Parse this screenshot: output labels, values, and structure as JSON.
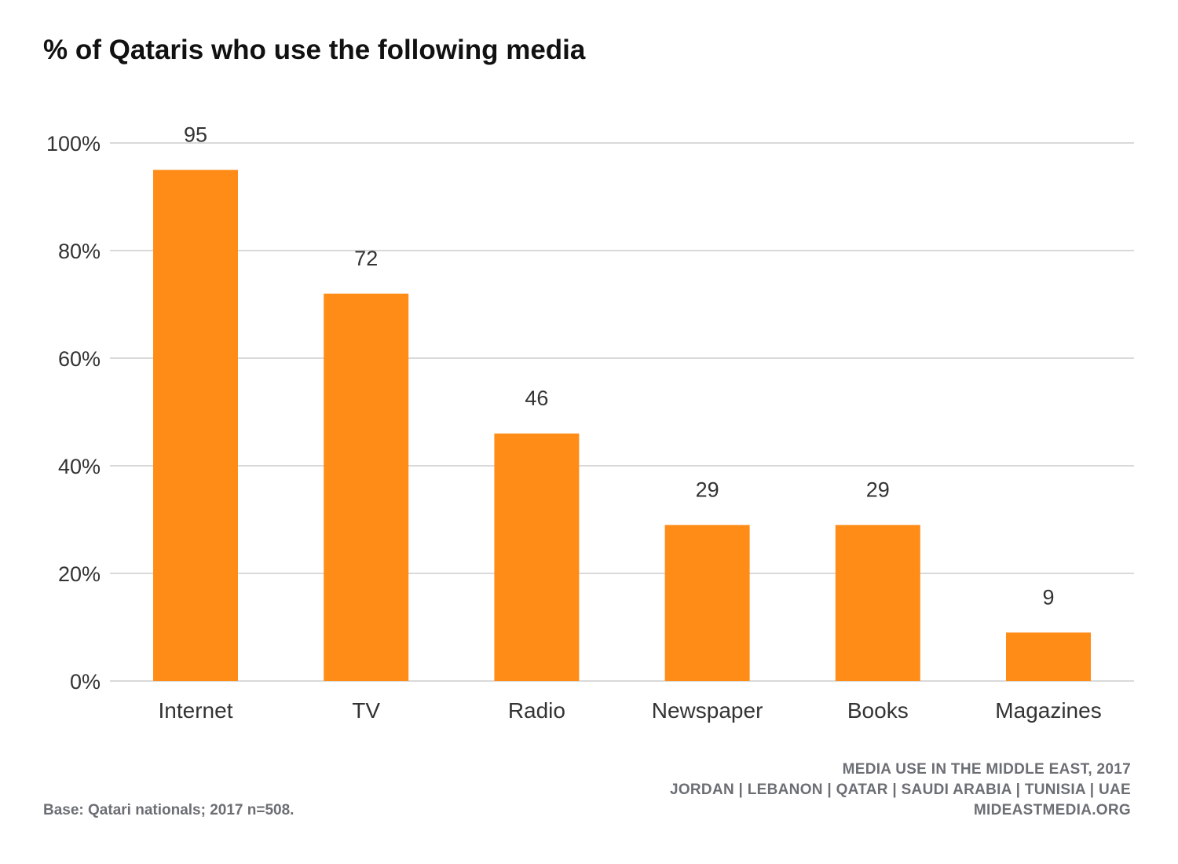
{
  "chart_data": {
    "type": "bar",
    "title": "% of Qataris who use the following media",
    "categories": [
      "Internet",
      "TV",
      "Radio",
      "Newspaper",
      "Books",
      "Magazines"
    ],
    "values": [
      95,
      72,
      46,
      29,
      29,
      9
    ],
    "data_labels": [
      "95",
      "72",
      "46",
      "29",
      "29",
      "9"
    ],
    "ylim": [
      0,
      100
    ],
    "yticks": [
      0,
      20,
      40,
      60,
      80,
      100
    ],
    "ytick_labels": [
      "0%",
      "20%",
      "40%",
      "60%",
      "80%",
      "100%"
    ],
    "grid": "horizontal",
    "legend": "none",
    "bar_color": "#FF8C16"
  },
  "footer": {
    "base_note": "Base: Qatari nationals; 2017 n=508.",
    "source_line1": "MEDIA USE IN THE MIDDLE EAST, 2017",
    "source_line2": "JORDAN | LEBANON | QATAR | SAUDI ARABIA | TUNISIA | UAE",
    "source_line3": "MIDEASTMEDIA.ORG"
  },
  "colors": {
    "text_dark": "#111111",
    "axis_text": "#333333",
    "footer_text": "#6b6e73",
    "gridline": "#d9d9d9"
  }
}
